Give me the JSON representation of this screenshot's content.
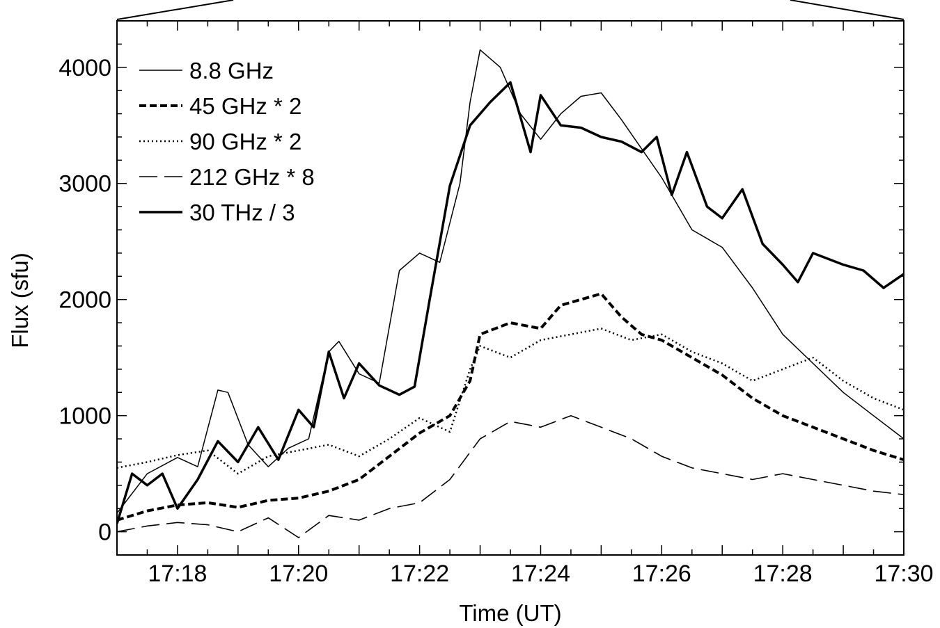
{
  "chart_data": {
    "type": "line",
    "title": "",
    "xlabel": "Time (UT)",
    "ylabel": "Flux (sfu)",
    "x_unit": "minutes after 17:17 UT",
    "xlim": [
      "17:17",
      "17:30"
    ],
    "ylim": [
      -200,
      4400
    ],
    "x_ticks": [
      "17:18",
      "17:20",
      "17:22",
      "17:24",
      "17:26",
      "17:28",
      "17:30"
    ],
    "y_ticks": [
      "0",
      "1000",
      "2000",
      "3000",
      "4000"
    ],
    "legend_position": "top-left",
    "series": [
      {
        "name": "8.8 GHz",
        "style": "thin",
        "points": [
          [
            "17:17:00",
            160
          ],
          [
            "17:17:30",
            500
          ],
          [
            "17:18:00",
            640
          ],
          [
            "17:18:20",
            560
          ],
          [
            "17:18:40",
            1220
          ],
          [
            "17:18:50",
            1200
          ],
          [
            "17:19:10",
            750
          ],
          [
            "17:19:30",
            560
          ],
          [
            "17:19:50",
            720
          ],
          [
            "17:20:10",
            800
          ],
          [
            "17:20:30",
            1550
          ],
          [
            "17:20:40",
            1640
          ],
          [
            "17:21:00",
            1360
          ],
          [
            "17:21:20",
            1280
          ],
          [
            "17:21:40",
            2250
          ],
          [
            "17:22:00",
            2400
          ],
          [
            "17:22:20",
            2320
          ],
          [
            "17:22:40",
            3000
          ],
          [
            "17:22:50",
            3700
          ],
          [
            "17:23:00",
            4150
          ],
          [
            "17:23:20",
            4000
          ],
          [
            "17:23:40",
            3600
          ],
          [
            "17:24:00",
            3380
          ],
          [
            "17:24:20",
            3600
          ],
          [
            "17:24:40",
            3750
          ],
          [
            "17:25:00",
            3780
          ],
          [
            "17:25:20",
            3550
          ],
          [
            "17:25:40",
            3300
          ],
          [
            "17:26:00",
            3050
          ],
          [
            "17:26:30",
            2600
          ],
          [
            "17:27:00",
            2450
          ],
          [
            "17:27:30",
            2100
          ],
          [
            "17:28:00",
            1700
          ],
          [
            "17:28:30",
            1450
          ],
          [
            "17:29:00",
            1200
          ],
          [
            "17:29:30",
            1000
          ],
          [
            "17:30:00",
            800
          ]
        ]
      },
      {
        "name": "45 GHz * 2",
        "style": "thick-dashed",
        "points": [
          [
            "17:17:00",
            100
          ],
          [
            "17:17:30",
            180
          ],
          [
            "17:18:00",
            230
          ],
          [
            "17:18:30",
            250
          ],
          [
            "17:19:00",
            210
          ],
          [
            "17:19:30",
            270
          ],
          [
            "17:20:00",
            290
          ],
          [
            "17:20:30",
            350
          ],
          [
            "17:21:00",
            450
          ],
          [
            "17:21:30",
            650
          ],
          [
            "17:22:00",
            850
          ],
          [
            "17:22:30",
            1000
          ],
          [
            "17:22:50",
            1300
          ],
          [
            "17:23:00",
            1700
          ],
          [
            "17:23:30",
            1800
          ],
          [
            "17:24:00",
            1750
          ],
          [
            "17:24:20",
            1950
          ],
          [
            "17:24:40",
            2000
          ],
          [
            "17:25:00",
            2050
          ],
          [
            "17:25:20",
            1850
          ],
          [
            "17:25:40",
            1700
          ],
          [
            "17:26:00",
            1650
          ],
          [
            "17:26:30",
            1500
          ],
          [
            "17:27:00",
            1350
          ],
          [
            "17:27:30",
            1150
          ],
          [
            "17:28:00",
            1000
          ],
          [
            "17:28:30",
            900
          ],
          [
            "17:29:00",
            800
          ],
          [
            "17:29:30",
            700
          ],
          [
            "17:30:00",
            620
          ]
        ]
      },
      {
        "name": "90 GHz * 2",
        "style": "dotted",
        "points": [
          [
            "17:17:00",
            550
          ],
          [
            "17:17:30",
            600
          ],
          [
            "17:18:00",
            660
          ],
          [
            "17:18:30",
            700
          ],
          [
            "17:19:00",
            500
          ],
          [
            "17:19:30",
            650
          ],
          [
            "17:20:00",
            700
          ],
          [
            "17:20:30",
            750
          ],
          [
            "17:21:00",
            650
          ],
          [
            "17:21:30",
            800
          ],
          [
            "17:22:00",
            980
          ],
          [
            "17:22:30",
            860
          ],
          [
            "17:22:50",
            1400
          ],
          [
            "17:23:00",
            1600
          ],
          [
            "17:23:30",
            1500
          ],
          [
            "17:24:00",
            1650
          ],
          [
            "17:24:30",
            1700
          ],
          [
            "17:25:00",
            1750
          ],
          [
            "17:25:30",
            1650
          ],
          [
            "17:26:00",
            1700
          ],
          [
            "17:26:30",
            1550
          ],
          [
            "17:27:00",
            1450
          ],
          [
            "17:27:30",
            1300
          ],
          [
            "17:28:00",
            1400
          ],
          [
            "17:28:30",
            1500
          ],
          [
            "17:29:00",
            1300
          ],
          [
            "17:29:30",
            1150
          ],
          [
            "17:30:00",
            1050
          ]
        ]
      },
      {
        "name": "212 GHz * 8",
        "style": "long-dashed",
        "points": [
          [
            "17:17:00",
            0
          ],
          [
            "17:17:30",
            50
          ],
          [
            "17:18:00",
            80
          ],
          [
            "17:18:30",
            60
          ],
          [
            "17:19:00",
            0
          ],
          [
            "17:19:30",
            120
          ],
          [
            "17:20:00",
            -50
          ],
          [
            "17:20:30",
            140
          ],
          [
            "17:21:00",
            100
          ],
          [
            "17:21:30",
            200
          ],
          [
            "17:22:00",
            250
          ],
          [
            "17:22:30",
            450
          ],
          [
            "17:23:00",
            800
          ],
          [
            "17:23:30",
            950
          ],
          [
            "17:24:00",
            900
          ],
          [
            "17:24:30",
            1000
          ],
          [
            "17:25:00",
            900
          ],
          [
            "17:25:30",
            800
          ],
          [
            "17:26:00",
            650
          ],
          [
            "17:26:30",
            550
          ],
          [
            "17:27:00",
            500
          ],
          [
            "17:27:30",
            450
          ],
          [
            "17:28:00",
            500
          ],
          [
            "17:28:30",
            450
          ],
          [
            "17:29:00",
            400
          ],
          [
            "17:29:30",
            350
          ],
          [
            "17:30:00",
            320
          ]
        ]
      },
      {
        "name": "30 THz / 3",
        "style": "thick",
        "points": [
          [
            "17:17:00",
            70
          ],
          [
            "17:17:15",
            500
          ],
          [
            "17:17:30",
            400
          ],
          [
            "17:17:45",
            500
          ],
          [
            "17:18:00",
            200
          ],
          [
            "17:18:20",
            450
          ],
          [
            "17:18:40",
            780
          ],
          [
            "17:19:00",
            600
          ],
          [
            "17:19:20",
            900
          ],
          [
            "17:19:40",
            620
          ],
          [
            "17:20:00",
            1050
          ],
          [
            "17:20:15",
            900
          ],
          [
            "17:20:30",
            1550
          ],
          [
            "17:20:45",
            1150
          ],
          [
            "17:21:00",
            1450
          ],
          [
            "17:21:20",
            1260
          ],
          [
            "17:21:40",
            1180
          ],
          [
            "17:21:55",
            1250
          ],
          [
            "17:22:10",
            2000
          ],
          [
            "17:22:30",
            2980
          ],
          [
            "17:22:50",
            3500
          ],
          [
            "17:23:10",
            3700
          ],
          [
            "17:23:30",
            3870
          ],
          [
            "17:23:50",
            3270
          ],
          [
            "17:24:00",
            3760
          ],
          [
            "17:24:20",
            3500
          ],
          [
            "17:24:40",
            3480
          ],
          [
            "17:25:00",
            3400
          ],
          [
            "17:25:20",
            3360
          ],
          [
            "17:25:40",
            3270
          ],
          [
            "17:25:55",
            3400
          ],
          [
            "17:26:10",
            2900
          ],
          [
            "17:26:25",
            3270
          ],
          [
            "17:26:45",
            2800
          ],
          [
            "17:27:00",
            2700
          ],
          [
            "17:27:20",
            2950
          ],
          [
            "17:27:40",
            2480
          ],
          [
            "17:28:00",
            2300
          ],
          [
            "17:28:15",
            2150
          ],
          [
            "17:28:30",
            2400
          ],
          [
            "17:29:00",
            2300
          ],
          [
            "17:29:20",
            2250
          ],
          [
            "17:29:40",
            2100
          ],
          [
            "17:30:00",
            2220
          ]
        ]
      }
    ]
  }
}
